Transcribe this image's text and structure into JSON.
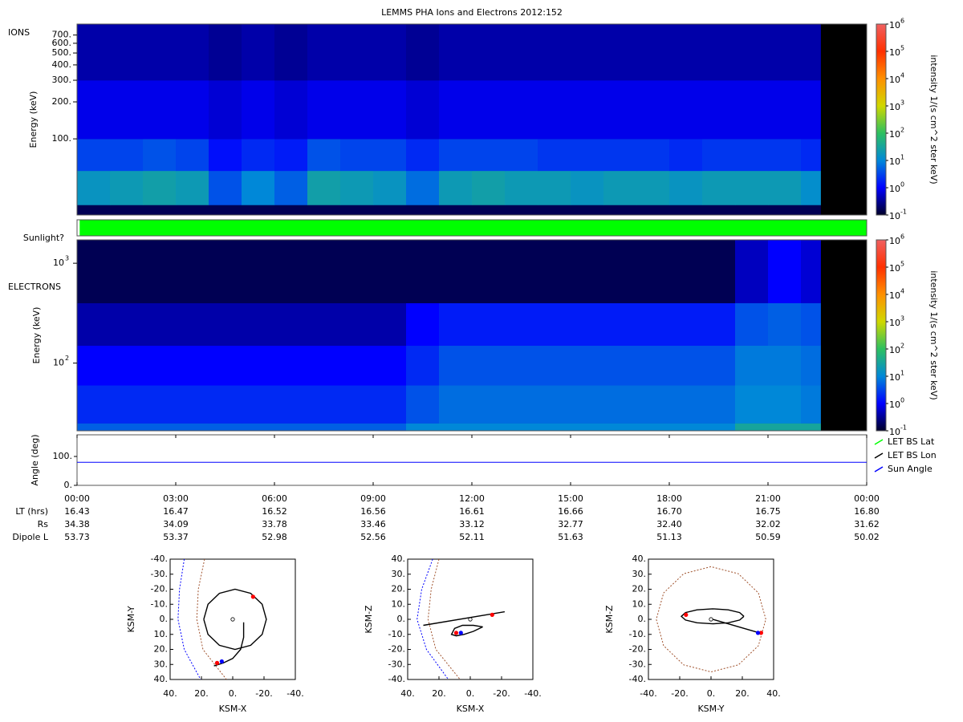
{
  "title": "LEMMS PHA Ions and Electrons  2012:152",
  "ephemeris": [
    {
      "label": "LT (hrs)",
      "values": [
        "16.43",
        "16.47",
        "16.52",
        "16.56",
        "16.61",
        "16.66",
        "16.70",
        "16.75",
        "16.80"
      ]
    },
    {
      "label": "Rs",
      "values": [
        "34.38",
        "34.09",
        "33.78",
        "33.46",
        "33.12",
        "32.77",
        "32.40",
        "32.02",
        "31.62"
      ]
    },
    {
      "label": "Dipole L",
      "values": [
        "53.73",
        "53.37",
        "52.98",
        "52.56",
        "52.11",
        "51.63",
        "51.13",
        "50.59",
        "50.02"
      ]
    }
  ],
  "chart_data": [
    {
      "type": "heatmap",
      "label": "IONS",
      "y_label": "Energy (keV)",
      "log_y": true,
      "xlim": [
        0,
        24
      ],
      "ylim": [
        24,
        860
      ],
      "yticks": [
        {
          "value": 100,
          "label": "100."
        },
        {
          "value": 200,
          "label": "200."
        },
        {
          "value": 300,
          "label": "300."
        },
        {
          "value": 400,
          "label": "400."
        },
        {
          "value": 500,
          "label": "500."
        },
        {
          "value": 600,
          "label": "600."
        },
        {
          "value": 700,
          "label": "700."
        }
      ],
      "x_edges": [
        0,
        1,
        2,
        3,
        4,
        5,
        6,
        7,
        8,
        9,
        10,
        11,
        12,
        13,
        14,
        15,
        16,
        17,
        18,
        19,
        20,
        21,
        22,
        22.6,
        24
      ],
      "y_edges": [
        24,
        29,
        55,
        100,
        300,
        860
      ],
      "values": [
        [
          -0.8,
          -0.8,
          -0.8,
          -0.8,
          -0.8,
          -0.8,
          -0.8,
          -0.8,
          -0.8,
          -0.8,
          -0.8,
          -0.8,
          -0.8,
          -0.8,
          -0.8,
          -0.8,
          -0.8,
          -0.8,
          -0.8,
          -0.8,
          -0.8,
          -0.8,
          -0.8,
          null
        ],
        [
          1.2,
          1.3,
          1.4,
          1.3,
          0.6,
          1.0,
          0.7,
          1.4,
          1.3,
          1.2,
          0.8,
          1.3,
          1.4,
          1.3,
          1.3,
          1.2,
          1.3,
          1.3,
          1.2,
          1.3,
          1.3,
          1.3,
          1.1,
          null
        ],
        [
          0.5,
          0.5,
          0.6,
          0.5,
          0.1,
          0.3,
          0.2,
          0.6,
          0.5,
          0.5,
          0.3,
          0.5,
          0.5,
          0.5,
          0.4,
          0.4,
          0.4,
          0.4,
          0.3,
          0.4,
          0.4,
          0.4,
          0.3,
          null
        ],
        [
          -0.1,
          -0.1,
          -0.1,
          -0.1,
          -0.2,
          -0.1,
          -0.2,
          -0.1,
          -0.1,
          -0.1,
          -0.2,
          -0.1,
          -0.1,
          -0.1,
          -0.1,
          -0.1,
          -0.1,
          -0.1,
          -0.1,
          -0.1,
          -0.1,
          -0.1,
          -0.1,
          null
        ],
        [
          -0.4,
          -0.4,
          -0.4,
          -0.4,
          -0.5,
          -0.4,
          -0.5,
          -0.4,
          -0.4,
          -0.4,
          -0.5,
          -0.4,
          -0.4,
          -0.4,
          -0.4,
          -0.4,
          -0.4,
          -0.4,
          -0.4,
          -0.4,
          -0.4,
          -0.4,
          -0.4,
          null
        ]
      ],
      "colormap": [
        "#000028",
        "#0000ff",
        "#0088d8",
        "#2cc060",
        "#d0d800",
        "#ff9000",
        "#ff3000",
        "#f06060"
      ],
      "colorbar": {
        "label": "intensity 1/(s cm^2 ster keV)",
        "lim": [
          -1,
          6
        ],
        "ticks": [
          {
            "value": -1,
            "label": "10",
            "exponent": "-1"
          },
          {
            "value": 0,
            "label": "10",
            "exponent": "0"
          },
          {
            "value": 1,
            "label": "10",
            "exponent": "1"
          },
          {
            "value": 2,
            "label": "10",
            "exponent": "2"
          },
          {
            "value": 3,
            "label": "10",
            "exponent": "3"
          },
          {
            "value": 4,
            "label": "10",
            "exponent": "4"
          },
          {
            "value": 5,
            "label": "10",
            "exponent": "5"
          },
          {
            "value": 6,
            "label": "10",
            "exponent": "6"
          }
        ]
      }
    },
    {
      "type": "status",
      "label": "Sunlight?",
      "xlim": [
        0,
        24
      ],
      "values": [
        0.08,
        24
      ],
      "color": "#00ff00"
    },
    {
      "type": "heatmap",
      "label": "ELECTRONS",
      "y_label": "Energy (keV)",
      "log_y": true,
      "xlim": [
        0,
        24
      ],
      "ylim": [
        21,
        1714
      ],
      "yticks": [
        {
          "value": 100,
          "label": "10",
          "exponent": "2"
        },
        {
          "value": 1000,
          "label": "10",
          "exponent": "3"
        }
      ],
      "x_edges": [
        0,
        1,
        2,
        3,
        4,
        5,
        6,
        7,
        8,
        9,
        10,
        11,
        12,
        13,
        14,
        15,
        16,
        17,
        18,
        19,
        20,
        21,
        22,
        22.6,
        24
      ],
      "y_edges": [
        21,
        25,
        60,
        150,
        400,
        1714
      ],
      "values": [
        [
          0.7,
          0.7,
          0.7,
          0.7,
          0.7,
          0.7,
          0.7,
          0.7,
          0.7,
          0.7,
          1.0,
          1.0,
          1.0,
          1.0,
          1.0,
          1.0,
          1.0,
          1.0,
          1.0,
          1.0,
          1.5,
          1.5,
          1.5,
          null
        ],
        [
          0.3,
          0.3,
          0.3,
          0.3,
          0.3,
          0.3,
          0.3,
          0.3,
          0.3,
          0.3,
          0.6,
          0.8,
          0.8,
          0.8,
          0.8,
          0.8,
          0.8,
          0.8,
          0.8,
          0.8,
          1.0,
          1.0,
          0.9,
          null
        ],
        [
          0.0,
          0.0,
          0.0,
          0.0,
          0.0,
          0.0,
          0.0,
          0.0,
          0.0,
          0.0,
          0.3,
          0.6,
          0.6,
          0.6,
          0.6,
          0.6,
          0.6,
          0.6,
          0.6,
          0.6,
          0.9,
          0.9,
          0.8,
          null
        ],
        [
          -0.4,
          -0.4,
          -0.4,
          -0.4,
          -0.4,
          -0.4,
          -0.4,
          -0.4,
          -0.4,
          -0.4,
          0.0,
          0.2,
          0.2,
          0.2,
          0.2,
          0.2,
          0.2,
          0.2,
          0.2,
          0.2,
          0.6,
          0.7,
          0.6,
          null
        ],
        [
          -0.8,
          -0.8,
          -0.8,
          -0.8,
          -0.8,
          -0.8,
          -0.8,
          -0.8,
          -0.8,
          -0.8,
          -0.8,
          -0.8,
          -0.8,
          -0.8,
          -0.8,
          -0.8,
          -0.8,
          -0.8,
          -0.8,
          -0.8,
          -0.3,
          0.0,
          -0.2,
          null
        ]
      ],
      "colormap": [
        "#000028",
        "#0000ff",
        "#0088d8",
        "#2cc060",
        "#d0d800",
        "#ff9000",
        "#ff3000",
        "#f06060"
      ],
      "colorbar": {
        "label": "intensity 1/(s cm^2 ster keV)",
        "lim": [
          -1,
          6
        ],
        "ticks": [
          {
            "value": -1,
            "label": "10",
            "exponent": "-1"
          },
          {
            "value": 0,
            "label": "10",
            "exponent": "0"
          },
          {
            "value": 1,
            "label": "10",
            "exponent": "1"
          },
          {
            "value": 2,
            "label": "10",
            "exponent": "2"
          },
          {
            "value": 3,
            "label": "10",
            "exponent": "3"
          },
          {
            "value": 4,
            "label": "10",
            "exponent": "4"
          },
          {
            "value": 5,
            "label": "10",
            "exponent": "5"
          },
          {
            "value": 6,
            "label": "10",
            "exponent": "6"
          }
        ]
      }
    },
    {
      "type": "line",
      "y_label": "Angle (deg)",
      "xlim": [
        0,
        24
      ],
      "ylim": [
        0,
        175
      ],
      "yticks": [
        {
          "value": 0,
          "label": "0."
        },
        {
          "value": 100,
          "label": "100."
        }
      ],
      "xticks": [
        {
          "value": 0,
          "label": "00:00"
        },
        {
          "value": 3,
          "label": "03:00"
        },
        {
          "value": 6,
          "label": "06:00"
        },
        {
          "value": 9,
          "label": "09:00"
        },
        {
          "value": 12,
          "label": "12:00"
        },
        {
          "value": 15,
          "label": "15:00"
        },
        {
          "value": 18,
          "label": "18:00"
        },
        {
          "value": 21,
          "label": "21:00"
        },
        {
          "value": 24,
          "label": "00:00"
        }
      ],
      "series": [
        {
          "name": "LET BS Lat",
          "color": "#00ff00"
        },
        {
          "name": "LET BS Lon",
          "color": "#000000"
        },
        {
          "name": "Sun Angle",
          "color": "#0000ff",
          "x": [
            0,
            24
          ],
          "values": [
            80,
            80
          ]
        }
      ]
    },
    {
      "type": "orbit",
      "x_label": "KSM-X",
      "y_label": "KSM-Y",
      "xlim": [
        40,
        -40
      ],
      "ylim": [
        40,
        -40
      ],
      "xticks": [
        {
          "value": 40,
          "label": "40."
        },
        {
          "value": 20,
          "label": "20."
        },
        {
          "value": 0,
          "label": "0."
        },
        {
          "value": -20,
          "label": "-20."
        },
        {
          "value": -40,
          "label": "-40."
        }
      ],
      "yticks": [
        {
          "value": -40,
          "label": "-40."
        },
        {
          "value": -30,
          "label": "-30."
        },
        {
          "value": -20,
          "label": "-20."
        },
        {
          "value": -10,
          "label": "-10."
        },
        {
          "value": 0,
          "label": "0."
        },
        {
          "value": 10,
          "label": "10."
        },
        {
          "value": 20,
          "label": "20."
        },
        {
          "value": 30,
          "label": "30."
        },
        {
          "value": 40,
          "label": "40."
        }
      ],
      "boundaries": [
        {
          "color": "#a0522d",
          "x": [
            18,
            22,
            23,
            19,
            4
          ],
          "y": [
            -40,
            -20,
            0,
            20,
            40
          ]
        },
        {
          "color": "#0000ff",
          "x": [
            31,
            34,
            35,
            31,
            20.5
          ],
          "y": [
            -40,
            -20,
            0,
            20,
            40
          ]
        }
      ],
      "trajectory": {
        "color": "#000000",
        "x": [
          18.5,
          15.8,
          8.5,
          -1.5,
          -11.5,
          -18.8,
          -21.5,
          -18.8,
          -11.5,
          -1.5,
          8.5,
          15.8,
          18.5,
          null,
          -7,
          -7,
          -5,
          0,
          6,
          12
        ],
        "y": [
          0,
          10,
          17.3,
          20,
          17.3,
          10,
          0,
          -10,
          -17.3,
          -20,
          -17.3,
          -10,
          0,
          null,
          2,
          12,
          20,
          26,
          29,
          31
        ]
      },
      "markers": [
        {
          "x": -13,
          "y": -15,
          "color": "#ff0000"
        },
        {
          "x": 10,
          "y": 29,
          "color": "#ff0000"
        },
        {
          "x": 7,
          "y": 28,
          "color": "#0000ff"
        }
      ]
    },
    {
      "type": "orbit",
      "x_label": "KSM-X",
      "y_label": "KSM-Z",
      "xlim": [
        40,
        -40
      ],
      "ylim": [
        -40,
        40
      ],
      "xticks": [
        {
          "value": 40,
          "label": "40."
        },
        {
          "value": 20,
          "label": "20."
        },
        {
          "value": 0,
          "label": "0."
        },
        {
          "value": -20,
          "label": "-20."
        },
        {
          "value": -40,
          "label": "-40."
        }
      ],
      "yticks": [
        {
          "value": 40,
          "label": "40."
        },
        {
          "value": 30,
          "label": "30."
        },
        {
          "value": 20,
          "label": "20."
        },
        {
          "value": 10,
          "label": "10."
        },
        {
          "value": 0,
          "label": "0."
        },
        {
          "value": -10,
          "label": "-10."
        },
        {
          "value": -20,
          "label": "-20."
        },
        {
          "value": -30,
          "label": "-30."
        },
        {
          "value": -40,
          "label": "-40."
        }
      ],
      "boundaries": [
        {
          "color": "#a0522d",
          "x": [
            20,
            25,
            27,
            22,
            6.5
          ],
          "y": [
            40,
            20,
            0,
            -20,
            -40
          ]
        },
        {
          "color": "#0000ff",
          "x": [
            24,
            31,
            34,
            28,
            14
          ],
          "y": [
            40,
            20,
            0,
            -20,
            -40
          ]
        }
      ],
      "trajectory": {
        "color": "#000000",
        "x": [
          30,
          -22,
          null,
          -8,
          -2,
          5,
          10,
          12,
          9,
          4,
          -2,
          -8
        ],
        "y": [
          -4,
          5,
          null,
          -5,
          -4,
          -4,
          -6,
          -10,
          -11,
          -10,
          -8,
          -5
        ]
      },
      "markers": [
        {
          "x": -14,
          "y": 3,
          "color": "#ff0000"
        },
        {
          "x": 9,
          "y": -9,
          "color": "#ff0000"
        },
        {
          "x": 6,
          "y": -9,
          "color": "#0000ff"
        }
      ]
    },
    {
      "type": "orbit",
      "x_label": "KSM-Y",
      "y_label": "KSM-Z",
      "xlim": [
        -40,
        40
      ],
      "ylim": [
        -40,
        40
      ],
      "xticks": [
        {
          "value": -40,
          "label": "-40."
        },
        {
          "value": -20,
          "label": "-20."
        },
        {
          "value": 0,
          "label": "0."
        },
        {
          "value": 20,
          "label": "20."
        },
        {
          "value": 40,
          "label": "40."
        }
      ],
      "yticks": [
        {
          "value": 40,
          "label": "40."
        },
        {
          "value": 30,
          "label": "30."
        },
        {
          "value": 20,
          "label": "20."
        },
        {
          "value": 10,
          "label": "10."
        },
        {
          "value": 0,
          "label": "0."
        },
        {
          "value": -10,
          "label": "-10."
        },
        {
          "value": -20,
          "label": "-20."
        },
        {
          "value": -30,
          "label": "-30."
        },
        {
          "value": -40,
          "label": "-40."
        }
      ],
      "boundaries": [
        {
          "color": "#a0522d",
          "x": [
            35,
            30.3,
            17.5,
            0,
            -17.5,
            -30.3,
            -35,
            -30.3,
            -17.5,
            0,
            17.5,
            30.3,
            35
          ],
          "y": [
            0,
            17.5,
            30.3,
            35,
            30.3,
            17.5,
            0,
            -17.5,
            -30.3,
            -35,
            -30.3,
            -17.5,
            0
          ]
        }
      ],
      "trajectory": {
        "color": "#000000",
        "x": [
          21,
          18.3,
          11,
          1,
          -9,
          -16.3,
          -19,
          -16.3,
          -9,
          1,
          11,
          18.3,
          21,
          null,
          1,
          31
        ],
        "y": [
          2,
          4.5,
          6.3,
          7,
          6.3,
          4.5,
          2,
          -0.5,
          -2.3,
          -3,
          -2.3,
          -0.5,
          2,
          null,
          0,
          -9
        ]
      },
      "markers": [
        {
          "x": -16,
          "y": 3,
          "color": "#ff0000"
        },
        {
          "x": 32,
          "y": -9,
          "color": "#ff0000"
        },
        {
          "x": 30,
          "y": -9,
          "color": "#0000ff"
        }
      ]
    }
  ]
}
